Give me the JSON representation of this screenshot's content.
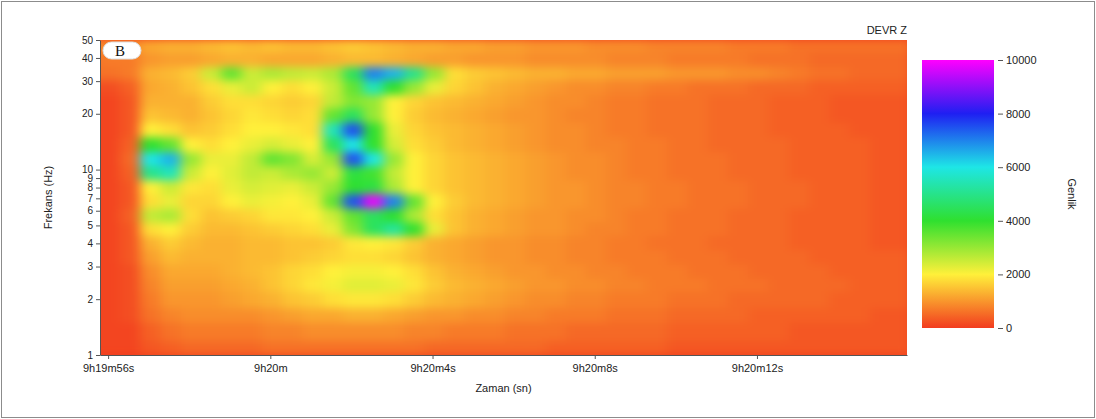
{
  "chart_data": {
    "type": "heatmap",
    "title": "DEVR Z",
    "panel_label": "B",
    "x_label": "Zaman (sn)",
    "y_label": "Frekans (Hz)",
    "log": "y",
    "xlim": [
      55.8,
      75.7
    ],
    "xticks": [
      {
        "value": 56,
        "label": "9h19m56s"
      },
      {
        "value": 60,
        "label": "9h20m"
      },
      {
        "value": 64,
        "label": "9h20m4s"
      },
      {
        "value": 68,
        "label": "9h20m8s"
      },
      {
        "value": 72,
        "label": "9h20m12s"
      }
    ],
    "ylim": [
      1,
      50
    ],
    "yticks": [
      1,
      2,
      3,
      4,
      5,
      6,
      7,
      8,
      9,
      10,
      20,
      30,
      40,
      50
    ],
    "x_edges": [
      55.3,
      55.8,
      56.3,
      56.8,
      57.3,
      57.8,
      58.3,
      58.8,
      59.3,
      59.8,
      60.3,
      60.8,
      61.3,
      61.8,
      62.3,
      62.8,
      63.3,
      63.8,
      64.3,
      64.8,
      65.3,
      65.8,
      66.3,
      66.8,
      67.3,
      67.8,
      68.3,
      68.8,
      69.3,
      69.8,
      70.3,
      70.8,
      71.3,
      71.8,
      72.3,
      72.8,
      73.3,
      73.8,
      74.3,
      74.8,
      75.3,
      75.8
    ],
    "y_edges": [
      1,
      1.2,
      1.5,
      1.8,
      2.2,
      2.6,
      3.1,
      3.7,
      4.4,
      5.2,
      6.2,
      7.4,
      8.8,
      10.5,
      12.5,
      15,
      18,
      21.5,
      25.5,
      30.5,
      36,
      43,
      50
    ],
    "cells": [
      [
        100,
        100,
        100,
        300,
        400,
        500,
        500,
        500,
        500,
        600,
        600,
        600,
        600,
        600,
        600,
        600,
        600,
        500,
        500,
        500,
        500,
        500,
        500,
        400,
        400,
        400,
        400,
        400,
        400,
        300,
        300,
        300,
        300,
        300,
        300,
        300,
        300,
        300,
        300,
        300,
        300
      ],
      [
        100,
        100,
        100,
        400,
        600,
        700,
        700,
        700,
        700,
        800,
        800,
        900,
        900,
        900,
        900,
        900,
        800,
        800,
        700,
        700,
        700,
        600,
        600,
        600,
        500,
        500,
        500,
        500,
        500,
        400,
        400,
        400,
        400,
        400,
        400,
        300,
        300,
        300,
        300,
        300,
        300
      ],
      [
        100,
        100,
        200,
        600,
        800,
        900,
        900,
        900,
        900,
        1000,
        1100,
        1200,
        1200,
        1300,
        1300,
        1200,
        1100,
        1000,
        1000,
        900,
        900,
        800,
        800,
        700,
        700,
        700,
        600,
        600,
        600,
        500,
        500,
        500,
        500,
        400,
        400,
        400,
        400,
        400,
        400,
        300,
        300
      ],
      [
        100,
        100,
        200,
        700,
        1000,
        1000,
        1000,
        1100,
        1200,
        1300,
        1500,
        1600,
        1800,
        1900,
        1900,
        1800,
        1600,
        1400,
        1300,
        1200,
        1100,
        1000,
        900,
        900,
        800,
        800,
        700,
        700,
        700,
        600,
        600,
        600,
        500,
        500,
        500,
        500,
        500,
        400,
        400,
        400,
        400
      ],
      [
        100,
        100,
        200,
        800,
        1100,
        1100,
        1100,
        1200,
        1300,
        1500,
        1700,
        1900,
        2100,
        2300,
        2300,
        2200,
        1900,
        1600,
        1400,
        1300,
        1200,
        1100,
        1000,
        1000,
        900,
        900,
        800,
        800,
        700,
        700,
        700,
        600,
        600,
        600,
        500,
        500,
        500,
        500,
        400,
        400,
        400
      ],
      [
        100,
        100,
        200,
        900,
        1200,
        1200,
        1200,
        1300,
        1400,
        1500,
        1700,
        1800,
        2000,
        2100,
        2100,
        2000,
        1800,
        1500,
        1300,
        1200,
        1100,
        1000,
        1000,
        900,
        900,
        800,
        800,
        700,
        700,
        700,
        600,
        600,
        600,
        500,
        500,
        500,
        500,
        400,
        400,
        400,
        400
      ],
      [
        100,
        100,
        300,
        1100,
        1400,
        1300,
        1300,
        1300,
        1400,
        1400,
        1500,
        1600,
        1700,
        1800,
        1800,
        1700,
        1500,
        1300,
        1200,
        1100,
        1000,
        1000,
        900,
        900,
        800,
        800,
        700,
        700,
        700,
        600,
        600,
        600,
        500,
        500,
        500,
        500,
        400,
        400,
        400,
        400,
        400
      ],
      [
        100,
        100,
        300,
        1300,
        1600,
        1400,
        1300,
        1300,
        1400,
        1400,
        1500,
        1500,
        1600,
        1900,
        2000,
        1900,
        1600,
        1300,
        1200,
        1100,
        1000,
        1000,
        900,
        900,
        800,
        800,
        700,
        700,
        600,
        600,
        600,
        500,
        500,
        500,
        500,
        400,
        400,
        400,
        400,
        300,
        300
      ],
      [
        100,
        100,
        300,
        1800,
        2000,
        1600,
        1400,
        1400,
        1500,
        1600,
        1700,
        1800,
        2200,
        3200,
        4500,
        5200,
        4000,
        2200,
        1500,
        1300,
        1200,
        1100,
        1000,
        1000,
        900,
        800,
        800,
        700,
        700,
        600,
        600,
        600,
        500,
        500,
        500,
        400,
        400,
        400,
        400,
        300,
        300
      ],
      [
        100,
        100,
        400,
        2600,
        2800,
        1800,
        1500,
        1600,
        1700,
        1900,
        1900,
        2000,
        2500,
        3500,
        4500,
        4000,
        2800,
        1800,
        1500,
        1300,
        1200,
        1100,
        1000,
        1000,
        900,
        900,
        800,
        700,
        700,
        600,
        600,
        600,
        500,
        500,
        500,
        400,
        400,
        400,
        400,
        300,
        300
      ],
      [
        100,
        100,
        300,
        1800,
        2200,
        1700,
        1700,
        2000,
        2200,
        2100,
        2000,
        2200,
        3500,
        7500,
        9800,
        7000,
        3500,
        2000,
        1600,
        1400,
        1300,
        1200,
        1100,
        1000,
        1000,
        900,
        800,
        800,
        700,
        700,
        600,
        600,
        600,
        500,
        500,
        500,
        400,
        400,
        400,
        300,
        300
      ],
      [
        100,
        100,
        300,
        2000,
        2500,
        1900,
        1800,
        2200,
        2400,
        2300,
        2200,
        2500,
        3000,
        4000,
        4200,
        2800,
        2000,
        1700,
        1500,
        1400,
        1300,
        1200,
        1100,
        1000,
        1000,
        900,
        800,
        800,
        700,
        700,
        600,
        600,
        600,
        500,
        500,
        500,
        400,
        400,
        400,
        300,
        300
      ],
      [
        100,
        100,
        400,
        5000,
        5500,
        2500,
        2000,
        2300,
        2600,
        2500,
        2800,
        3000,
        2500,
        4200,
        3800,
        2600,
        2000,
        1700,
        1500,
        1400,
        1300,
        1200,
        1100,
        1000,
        900,
        900,
        800,
        700,
        700,
        600,
        600,
        600,
        500,
        500,
        500,
        400,
        400,
        400,
        400,
        300,
        300
      ],
      [
        100,
        100,
        500,
        6000,
        6500,
        3000,
        2200,
        2200,
        2600,
        3500,
        3200,
        2400,
        3000,
        7500,
        6000,
        3000,
        2000,
        1700,
        1500,
        1400,
        1300,
        1200,
        1100,
        1000,
        900,
        900,
        800,
        700,
        700,
        600,
        600,
        600,
        500,
        500,
        500,
        400,
        400,
        400,
        400,
        300,
        300
      ],
      [
        100,
        100,
        400,
        4000,
        3500,
        2000,
        1800,
        2000,
        2200,
        2400,
        2200,
        2000,
        4500,
        6000,
        4000,
        2400,
        1800,
        1600,
        1400,
        1300,
        1200,
        1100,
        1000,
        900,
        900,
        800,
        800,
        700,
        700,
        600,
        600,
        500,
        500,
        500,
        500,
        400,
        400,
        400,
        400,
        300,
        300
      ],
      [
        100,
        100,
        300,
        2000,
        1800,
        1500,
        1600,
        1800,
        2000,
        2000,
        1900,
        1800,
        5500,
        7500,
        4000,
        2200,
        1700,
        1500,
        1400,
        1300,
        1200,
        1100,
        1000,
        900,
        900,
        800,
        700,
        700,
        600,
        600,
        600,
        500,
        500,
        500,
        400,
        400,
        400,
        400,
        300,
        300,
        300
      ],
      [
        100,
        100,
        300,
        1500,
        1400,
        1300,
        1500,
        1700,
        1900,
        1800,
        1700,
        1800,
        3500,
        4500,
        3000,
        2000,
        1600,
        1400,
        1300,
        1200,
        1100,
        1000,
        1000,
        900,
        800,
        800,
        700,
        700,
        600,
        600,
        600,
        500,
        500,
        500,
        400,
        400,
        400,
        300,
        300,
        300,
        300
      ],
      [
        100,
        100,
        300,
        1300,
        1300,
        1300,
        1600,
        1800,
        1800,
        1700,
        1600,
        1700,
        2600,
        3200,
        3000,
        2000,
        1700,
        1500,
        1400,
        1300,
        1200,
        1100,
        1000,
        900,
        900,
        800,
        700,
        700,
        600,
        600,
        600,
        500,
        500,
        500,
        400,
        400,
        400,
        300,
        300,
        300,
        300
      ],
      [
        200,
        200,
        400,
        1200,
        1300,
        1500,
        1800,
        2200,
        2500,
        2000,
        1800,
        2000,
        2500,
        3500,
        5500,
        4000,
        3000,
        2200,
        1700,
        1500,
        1300,
        1200,
        1100,
        1000,
        900,
        900,
        800,
        800,
        700,
        700,
        600,
        600,
        600,
        500,
        500,
        500,
        400,
        400,
        400,
        400,
        400
      ],
      [
        600,
        600,
        700,
        1300,
        1400,
        1600,
        2500,
        3500,
        2500,
        2800,
        2600,
        2500,
        2800,
        4500,
        7000,
        6500,
        5000,
        3000,
        1800,
        1600,
        1500,
        1400,
        1300,
        1300,
        1200,
        1200,
        1100,
        1100,
        1100,
        1000,
        1000,
        1000,
        900,
        900,
        800,
        700,
        600,
        600,
        500,
        500,
        500
      ],
      [
        600,
        700,
        700,
        1000,
        1100,
        1100,
        1200,
        1300,
        1300,
        1200,
        1200,
        1200,
        1300,
        1400,
        1400,
        1300,
        1200,
        1100,
        1100,
        1000,
        1000,
        1000,
        900,
        900,
        900,
        900,
        800,
        800,
        800,
        700,
        700,
        700,
        700,
        600,
        600,
        600,
        500,
        500,
        500,
        500,
        500
      ],
      [
        800,
        900,
        900,
        1200,
        1300,
        1300,
        1400,
        1500,
        1400,
        1500,
        1400,
        1400,
        1500,
        1600,
        1500,
        1400,
        1300,
        1300,
        1200,
        1200,
        1100,
        1100,
        1000,
        1000,
        1000,
        900,
        900,
        900,
        800,
        800,
        800,
        800,
        700,
        700,
        700,
        600,
        600,
        600,
        600,
        600,
        600
      ]
    ],
    "colorbar": {
      "label": "Genlik",
      "range": [
        0,
        10000
      ],
      "ticks": [
        0,
        2000,
        4000,
        6000,
        8000,
        10000
      ]
    }
  }
}
